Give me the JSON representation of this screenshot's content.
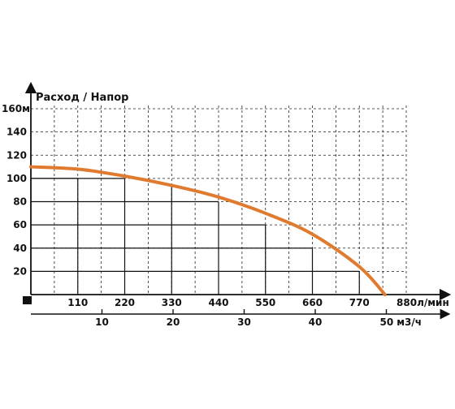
{
  "chart_data": {
    "type": "line",
    "title": "Расход / Напор",
    "y_unit": "м",
    "x_unit": "л/мин",
    "x2_unit": "м3/ч",
    "x_ticks": [
      110,
      220,
      330,
      440,
      550,
      660,
      770,
      880
    ],
    "x_tick_labels": [
      "110",
      "220",
      "330",
      "440",
      "550",
      "660",
      "770",
      "880"
    ],
    "y_ticks": [
      20,
      40,
      60,
      80,
      100,
      120,
      140,
      160
    ],
    "y_tick_labels": [
      "20",
      "40",
      "60",
      "80",
      "100",
      "120",
      "140",
      "160"
    ],
    "x2_ticks": [
      10,
      20,
      30,
      40,
      50
    ],
    "x2_tick_labels": [
      "10",
      "20",
      "30",
      "40",
      "50"
    ],
    "xlim": [
      0,
      880
    ],
    "ylim": [
      0,
      160
    ],
    "x2lim": [
      0,
      52.8
    ],
    "grid": true,
    "colors": {
      "curve": "#e07a2e",
      "grid": "#222222",
      "axis": "#111111"
    },
    "series": [
      {
        "x": [
          0,
          110,
          220,
          330,
          440,
          550,
          660,
          770,
          830
        ],
        "y": [
          110,
          108,
          102,
          94,
          84,
          70,
          52,
          24,
          0
        ]
      }
    ],
    "highlight_rectangles": [
      {
        "x": 110,
        "y": 100
      },
      {
        "x": 220,
        "y": 100
      },
      {
        "x": 440,
        "y": 80
      },
      {
        "x": 550,
        "y": 60
      },
      {
        "x": 660,
        "y": 40
      },
      {
        "x": 770,
        "y": 20
      }
    ]
  }
}
